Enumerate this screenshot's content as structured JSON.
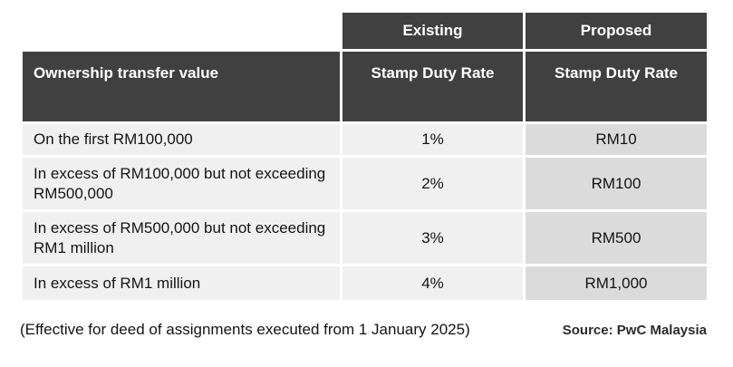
{
  "chart_data": {
    "type": "table",
    "header_row_1": [
      "",
      "Existing",
      "Proposed"
    ],
    "header_row_2": [
      "Ownership transfer value",
      "Stamp Duty Rate",
      "Stamp Duty Rate"
    ],
    "rows": [
      [
        "On the first RM100,000",
        "1%",
        "RM10"
      ],
      [
        "In excess of RM100,000 but not exceeding RM500,000",
        "2%",
        "RM100"
      ],
      [
        "In excess of RM500,000 but not exceeding RM1 million",
        "3%",
        "RM500"
      ],
      [
        "In excess of RM1 million",
        "4%",
        "RM1,000"
      ]
    ],
    "footnote": "(Effective for deed of assignments executed from 1 January 2025)",
    "source": "Source: PwC Malaysia",
    "layout_hints": {
      "header_alignment": "top",
      "value_alignment": "center",
      "label_alignment": "left"
    }
  },
  "colors": {
    "header_bg": "#404040",
    "header_text": "#ffffff",
    "body_bg": "#f0f0f0",
    "proposed_column_bg": "#dbdbdb",
    "grid_border": "#ffffff",
    "body_text": "#141414"
  }
}
